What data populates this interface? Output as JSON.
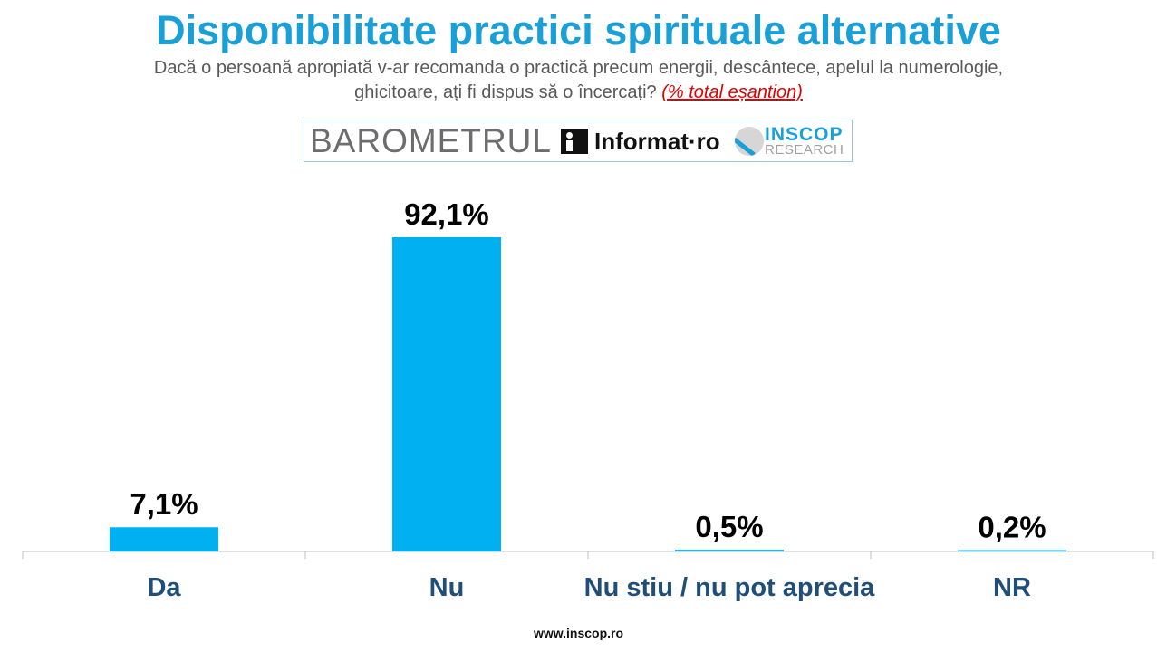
{
  "header": {
    "title": "Disponibilitate practici spirituale alternative",
    "subtitle_line1": "Dacă o persoană apropiată v-ar recomanda o practică precum energii, descântece, apelul la numerologie,",
    "subtitle_line2": "ghicitoare, ați fi dispus să o încercați?",
    "subtitle_note": "(% total eșantion)"
  },
  "logos": {
    "barometru": "BAROMETRUL",
    "informat": "Informat·ro",
    "inscop": "INSCOP",
    "research": "RESEARCH"
  },
  "chart_data": {
    "type": "bar",
    "categories": [
      "Da",
      "Nu",
      "Nu stiu / nu pot aprecia",
      "NR"
    ],
    "values": [
      7.1,
      92.1,
      0.5,
      0.2
    ],
    "data_labels": [
      "7,1%",
      "92,1%",
      "0,5%",
      "0,2%"
    ],
    "ylim": [
      0,
      100
    ],
    "grid": false,
    "bar_color": "#00b0f0"
  },
  "footer": {
    "url": "www.inscop.ro"
  }
}
